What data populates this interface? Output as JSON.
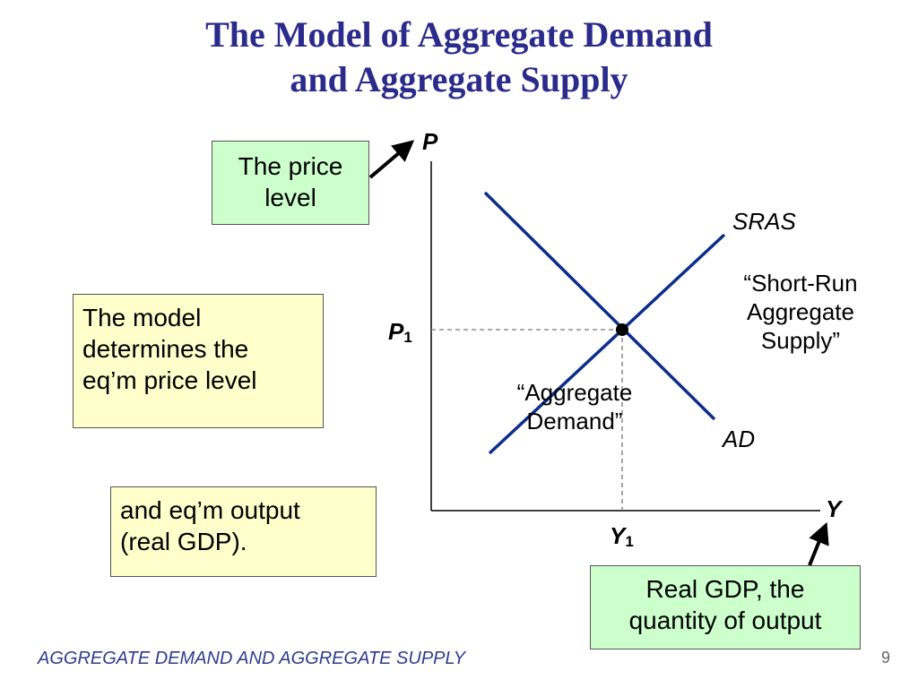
{
  "title": {
    "line1": "The Model of Aggregate Demand",
    "line2": "and Aggregate Supply"
  },
  "callouts": {
    "price_level": [
      "The price",
      "level"
    ],
    "model_determines": [
      "The model",
      "determines the",
      "eq’m price level"
    ],
    "output": [
      "and eq’m output",
      "(real GDP)."
    ],
    "real_gdp": [
      "Real GDP, the",
      "quantity of output"
    ]
  },
  "diagram": {
    "y_axis_label": "P",
    "x_axis_label": "Y",
    "eq_price": {
      "main": "P",
      "sub": "1"
    },
    "eq_output": {
      "main": "Y",
      "sub": "1"
    },
    "sras_label": "SRAS",
    "ad_label": "AD",
    "sras_desc": [
      "“Short-Run",
      "Aggregate",
      "Supply”"
    ],
    "ad_desc": [
      "“Aggregate",
      "Demand”"
    ],
    "colors": {
      "curves": "#0b2e8c",
      "axes": "#000000",
      "guides": "#777777",
      "title": "#2b2b8c"
    }
  },
  "footer": {
    "text": "AGGREGATE DEMAND AND AGGREGATE SUPPLY",
    "page_number": "9"
  }
}
